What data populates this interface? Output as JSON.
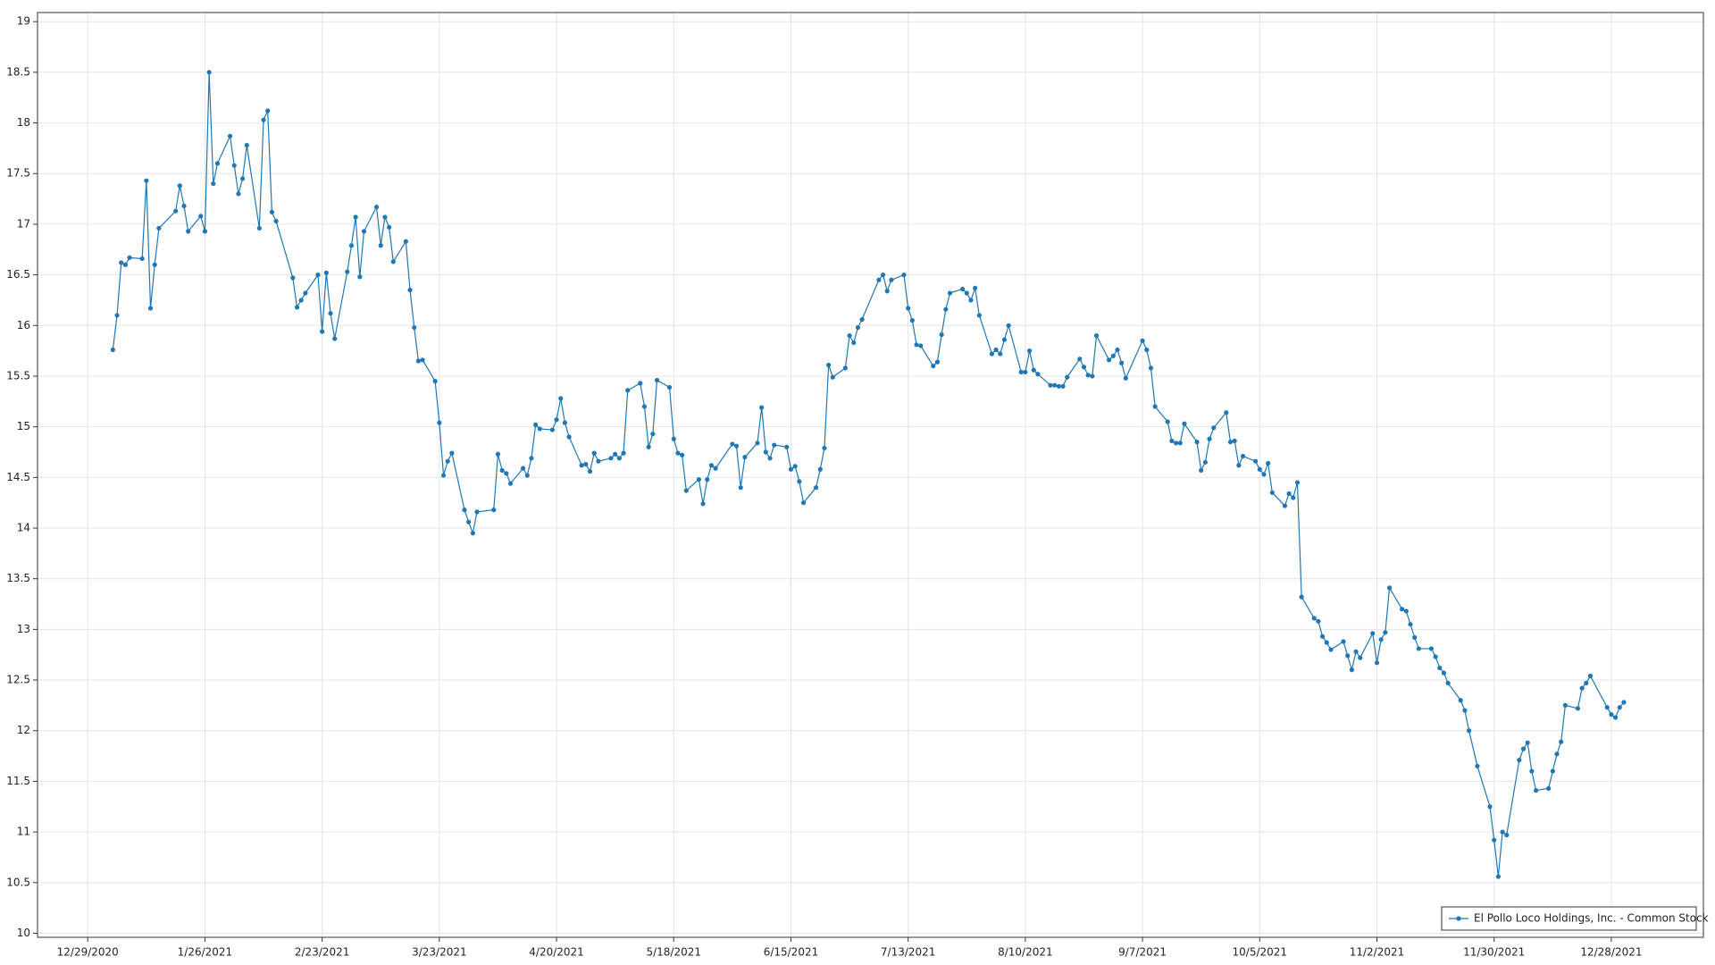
{
  "chart_data": {
    "type": "line",
    "x": [
      "1/4/2021",
      "1/5/2021",
      "1/6/2021",
      "1/7/2021",
      "1/8/2021",
      "1/11/2021",
      "1/12/2021",
      "1/13/2021",
      "1/14/2021",
      "1/15/2021",
      "1/19/2021",
      "1/20/2021",
      "1/21/2021",
      "1/22/2021",
      "1/25/2021",
      "1/26/2021",
      "1/27/2021",
      "1/28/2021",
      "1/29/2021",
      "2/1/2021",
      "2/2/2021",
      "2/3/2021",
      "2/4/2021",
      "2/5/2021",
      "2/8/2021",
      "2/9/2021",
      "2/10/2021",
      "2/11/2021",
      "2/12/2021",
      "2/16/2021",
      "2/17/2021",
      "2/18/2021",
      "2/19/2021",
      "2/22/2021",
      "2/23/2021",
      "2/24/2021",
      "2/25/2021",
      "2/26/2021",
      "3/1/2021",
      "3/2/2021",
      "3/3/2021",
      "3/4/2021",
      "3/5/2021",
      "3/8/2021",
      "3/9/2021",
      "3/10/2021",
      "3/11/2021",
      "3/12/2021",
      "3/15/2021",
      "3/16/2021",
      "3/17/2021",
      "3/18/2021",
      "3/19/2021",
      "3/22/2021",
      "3/23/2021",
      "3/24/2021",
      "3/25/2021",
      "3/26/2021",
      "3/29/2021",
      "3/30/2021",
      "3/31/2021",
      "4/1/2021",
      "4/5/2021",
      "4/6/2021",
      "4/7/2021",
      "4/8/2021",
      "4/9/2021",
      "4/12/2021",
      "4/13/2021",
      "4/14/2021",
      "4/15/2021",
      "4/16/2021",
      "4/19/2021",
      "4/20/2021",
      "4/21/2021",
      "4/22/2021",
      "4/23/2021",
      "4/26/2021",
      "4/27/2021",
      "4/28/2021",
      "4/29/2021",
      "4/30/2021",
      "5/3/2021",
      "5/4/2021",
      "5/5/2021",
      "5/6/2021",
      "5/7/2021",
      "5/10/2021",
      "5/11/2021",
      "5/12/2021",
      "5/13/2021",
      "5/14/2021",
      "5/17/2021",
      "5/18/2021",
      "5/19/2021",
      "5/20/2021",
      "5/21/2021",
      "5/24/2021",
      "5/25/2021",
      "5/26/2021",
      "5/27/2021",
      "5/28/2021",
      "6/1/2021",
      "6/2/2021",
      "6/3/2021",
      "6/4/2021",
      "6/7/2021",
      "6/8/2021",
      "6/9/2021",
      "6/10/2021",
      "6/11/2021",
      "6/14/2021",
      "6/15/2021",
      "6/16/2021",
      "6/17/2021",
      "6/18/2021",
      "6/21/2021",
      "6/22/2021",
      "6/23/2021",
      "6/24/2021",
      "6/25/2021",
      "6/28/2021",
      "6/29/2021",
      "6/30/2021",
      "7/1/2021",
      "7/2/2021",
      "7/6/2021",
      "7/7/2021",
      "7/8/2021",
      "7/9/2021",
      "7/12/2021",
      "7/13/2021",
      "7/14/2021",
      "7/15/2021",
      "7/16/2021",
      "7/19/2021",
      "7/20/2021",
      "7/21/2021",
      "7/22/2021",
      "7/23/2021",
      "7/26/2021",
      "7/27/2021",
      "7/28/2021",
      "7/29/2021",
      "7/30/2021",
      "8/2/2021",
      "8/3/2021",
      "8/4/2021",
      "8/5/2021",
      "8/6/2021",
      "8/9/2021",
      "8/10/2021",
      "8/11/2021",
      "8/12/2021",
      "8/13/2021",
      "8/16/2021",
      "8/17/2021",
      "8/18/2021",
      "8/19/2021",
      "8/20/2021",
      "8/23/2021",
      "8/24/2021",
      "8/25/2021",
      "8/26/2021",
      "8/27/2021",
      "8/30/2021",
      "8/31/2021",
      "9/1/2021",
      "9/2/2021",
      "9/3/2021",
      "9/7/2021",
      "9/8/2021",
      "9/9/2021",
      "9/10/2021",
      "9/13/2021",
      "9/14/2021",
      "9/15/2021",
      "9/16/2021",
      "9/17/2021",
      "9/20/2021",
      "9/21/2021",
      "9/22/2021",
      "9/23/2021",
      "9/24/2021",
      "9/27/2021",
      "9/28/2021",
      "9/29/2021",
      "9/30/2021",
      "10/1/2021",
      "10/4/2021",
      "10/5/2021",
      "10/6/2021",
      "10/7/2021",
      "10/8/2021",
      "10/11/2021",
      "10/12/2021",
      "10/13/2021",
      "10/14/2021",
      "10/15/2021",
      "10/18/2021",
      "10/19/2021",
      "10/20/2021",
      "10/21/2021",
      "10/22/2021",
      "10/25/2021",
      "10/26/2021",
      "10/27/2021",
      "10/28/2021",
      "10/29/2021",
      "11/1/2021",
      "11/2/2021",
      "11/3/2021",
      "11/4/2021",
      "11/5/2021",
      "11/8/2021",
      "11/9/2021",
      "11/10/2021",
      "11/11/2021",
      "11/12/2021",
      "11/15/2021",
      "11/16/2021",
      "11/17/2021",
      "11/18/2021",
      "11/19/2021",
      "11/22/2021",
      "11/23/2021",
      "11/24/2021",
      "11/26/2021",
      "11/29/2021",
      "11/30/2021",
      "12/1/2021",
      "12/2/2021",
      "12/3/2021",
      "12/6/2021",
      "12/7/2021",
      "12/8/2021",
      "12/9/2021",
      "12/10/2021",
      "12/13/2021",
      "12/14/2021",
      "12/15/2021",
      "12/16/2021",
      "12/17/2021",
      "12/20/2021",
      "12/21/2021",
      "12/22/2021",
      "12/23/2021",
      "12/27/2021",
      "12/28/2021",
      "12/29/2021",
      "12/30/2021",
      "12/31/2021"
    ],
    "series": [
      {
        "name": "El Pollo Loco Holdings, Inc. - Common Stock",
        "color": "#1f77b4",
        "values": [
          15.76,
          16.1,
          16.62,
          16.6,
          16.67,
          16.66,
          17.43,
          16.17,
          16.6,
          16.96,
          17.13,
          17.38,
          17.18,
          16.93,
          17.08,
          16.93,
          18.5,
          17.4,
          17.6,
          17.87,
          17.58,
          17.3,
          17.45,
          17.78,
          16.96,
          18.03,
          18.12,
          17.12,
          17.03,
          16.47,
          16.18,
          16.25,
          16.32,
          16.5,
          15.94,
          16.52,
          16.12,
          15.87,
          16.53,
          16.79,
          17.07,
          16.48,
          16.93,
          17.17,
          16.79,
          17.07,
          16.97,
          16.63,
          16.83,
          16.35,
          15.98,
          15.65,
          15.66,
          15.45,
          15.04,
          14.52,
          14.66,
          14.74,
          14.18,
          14.06,
          13.95,
          14.16,
          14.18,
          14.73,
          14.57,
          14.54,
          14.44,
          14.59,
          14.52,
          14.69,
          15.02,
          14.98,
          14.97,
          15.07,
          15.28,
          15.04,
          14.9,
          14.62,
          14.63,
          14.56,
          14.74,
          14.66,
          14.69,
          14.73,
          14.69,
          14.74,
          15.36,
          15.43,
          15.2,
          14.8,
          14.93,
          15.46,
          15.39,
          14.88,
          14.74,
          14.72,
          14.37,
          14.48,
          14.24,
          14.48,
          14.62,
          14.59,
          14.83,
          14.81,
          14.4,
          14.7,
          14.84,
          15.19,
          14.75,
          14.69,
          14.82,
          14.8,
          14.58,
          14.61,
          14.46,
          14.25,
          14.4,
          14.58,
          14.79,
          15.61,
          15.49,
          15.58,
          15.9,
          15.83,
          15.98,
          16.06,
          16.45,
          16.5,
          16.34,
          16.45,
          16.5,
          16.17,
          16.05,
          15.81,
          15.8,
          15.6,
          15.64,
          15.91,
          16.16,
          16.32,
          16.36,
          16.32,
          16.25,
          16.37,
          16.1,
          15.72,
          15.76,
          15.72,
          15.86,
          16.0,
          15.54,
          15.54,
          15.75,
          15.56,
          15.52,
          15.41,
          15.41,
          15.4,
          15.4,
          15.49,
          15.67,
          15.59,
          15.51,
          15.5,
          15.9,
          15.66,
          15.7,
          15.76,
          15.63,
          15.48,
          15.85,
          15.76,
          15.58,
          15.2,
          15.05,
          14.86,
          14.84,
          14.84,
          15.03,
          14.85,
          14.57,
          14.65,
          14.88,
          14.99,
          15.14,
          14.85,
          14.86,
          14.62,
          14.71,
          14.66,
          14.58,
          14.53,
          14.64,
          14.35,
          14.22,
          14.34,
          14.3,
          14.45,
          13.32,
          13.11,
          13.08,
          12.93,
          12.87,
          12.8,
          12.88,
          12.74,
          12.6,
          12.78,
          12.72,
          12.96,
          12.67,
          12.9,
          12.97,
          13.41,
          13.2,
          13.18,
          13.05,
          12.92,
          12.81,
          12.81,
          12.73,
          12.62,
          12.57,
          12.47,
          12.3,
          12.2,
          12.0,
          11.65,
          11.25,
          10.92,
          10.56,
          11.0,
          10.97,
          11.71,
          11.82,
          11.88,
          11.6,
          11.41,
          11.43,
          11.6,
          11.77,
          11.89,
          12.25,
          12.22,
          12.42,
          12.47,
          12.54,
          12.23,
          12.16,
          12.13,
          12.23,
          12.28
        ]
      }
    ],
    "xlim": [
      "12/17/2020",
      "1/19/2022"
    ],
    "xticks": [
      "12/29/2020",
      "1/26/2021",
      "2/23/2021",
      "3/23/2021",
      "4/20/2021",
      "5/18/2021",
      "6/15/2021",
      "7/13/2021",
      "8/10/2021",
      "9/7/2021",
      "10/5/2021",
      "11/2/2021",
      "11/30/2021",
      "12/28/2021"
    ],
    "ylim": [
      9.96,
      19.09
    ],
    "yticks": [
      10,
      10.5,
      11,
      11.5,
      12,
      12.5,
      13,
      13.5,
      14,
      14.5,
      15,
      15.5,
      16,
      16.5,
      17,
      17.5,
      18,
      18.5,
      19
    ],
    "grid": true,
    "legend": "lower right"
  }
}
